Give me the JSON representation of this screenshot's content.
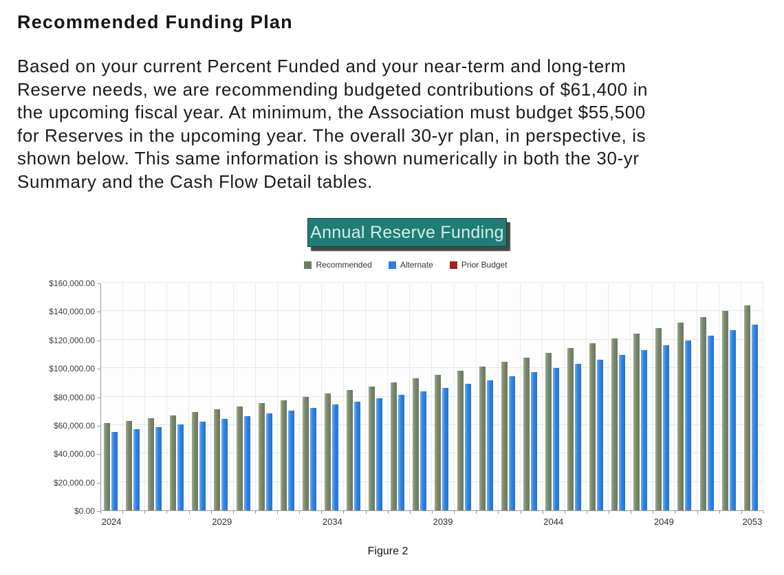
{
  "heading": "Recommended Funding Plan",
  "intro": {
    "lines": [
      "Based on your current Percent Funded and your near-term and long-term",
      "Reserve needs, we are recommending budgeted contributions of $61,400 in",
      "the upcoming fiscal year. At minimum, the Association must budget $55,500",
      "for Reserves in the upcoming year. The overall 30-yr plan, in perspective, is",
      "shown below. This same information is shown numerically in both the 30-yr",
      "Summary and the Cash Flow Detail tables."
    ]
  },
  "chart": {
    "title": "Annual Reserve Funding",
    "title_bg": "#1f7d76",
    "title_color": "#d6ece7",
    "legend": [
      {
        "label": "Recommended",
        "color": "#6c7c64"
      },
      {
        "label": "Alternate",
        "color": "#2d7fe3"
      },
      {
        "label": "Prior Budget",
        "color": "#a91e1e"
      }
    ]
  },
  "chart_data": {
    "type": "bar",
    "title": "Annual Reserve Funding",
    "categories": [
      2024,
      2025,
      2026,
      2027,
      2028,
      2029,
      2030,
      2031,
      2032,
      2033,
      2034,
      2035,
      2036,
      2037,
      2038,
      2039,
      2040,
      2041,
      2042,
      2043,
      2044,
      2045,
      2046,
      2047,
      2048,
      2049,
      2050,
      2051,
      2052,
      2053
    ],
    "series": [
      {
        "name": "Recommended",
        "color": "#7a8a6c",
        "values": [
          61400,
          63200,
          65100,
          67100,
          69100,
          71200,
          73300,
          75500,
          77800,
          80100,
          82500,
          85000,
          87500,
          90200,
          92900,
          95700,
          98500,
          101500,
          104500,
          107700,
          110900,
          114200,
          117600,
          121200,
          124800,
          128600,
          132400,
          136400,
          140500,
          144700
        ]
      },
      {
        "name": "Alternate",
        "color": "#2e84e6",
        "values": [
          55500,
          57200,
          58900,
          60600,
          62500,
          64300,
          66300,
          68300,
          70300,
          72400,
          74600,
          76800,
          79100,
          81500,
          83900,
          86500,
          89100,
          91700,
          94500,
          97300,
          100200,
          103200,
          106300,
          109500,
          112800,
          116200,
          119700,
          123300,
          127000,
          130800
        ]
      },
      {
        "name": "Prior Budget",
        "color": "#a91e1e",
        "values": []
      }
    ],
    "ylim": [
      0,
      160000
    ],
    "y_major_step": 20000,
    "y_tick_labels": [
      "$0.00",
      "$20,000.00",
      "$40,000.00",
      "$60,000.00",
      "$80,000.00",
      "$100,000.00",
      "$120,000.00",
      "$140,000.00",
      "$160,000.00"
    ],
    "x_tick_labels": [
      "2024",
      "2029",
      "2034",
      "2039",
      "2044",
      "2049",
      "2053"
    ],
    "x_tick_indices": [
      0,
      5,
      10,
      15,
      20,
      25,
      29
    ],
    "grid": true,
    "legend_position": "top"
  },
  "figure_caption": "Figure 2"
}
